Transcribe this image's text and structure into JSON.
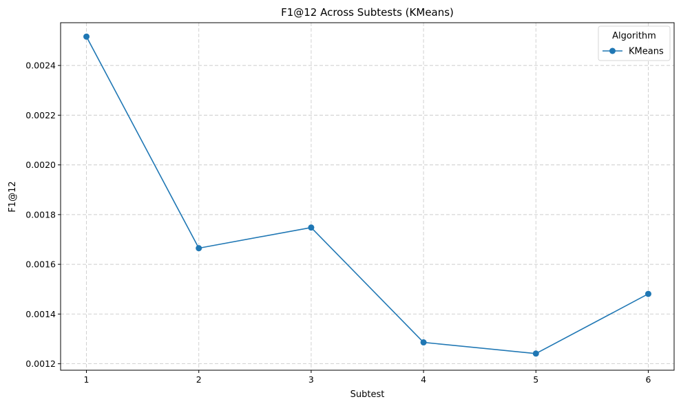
{
  "chart_data": {
    "type": "line",
    "title": "F1@12 Across Subtests (KMeans)",
    "xlabel": "Subtest",
    "ylabel": "F1@12",
    "x": [
      1,
      2,
      3,
      4,
      5,
      6
    ],
    "xlim": [
      0.77,
      6.23
    ],
    "ylim": [
      0.001174,
      0.002572
    ],
    "x_ticks": [
      "1",
      "2",
      "3",
      "4",
      "5",
      "6"
    ],
    "y_ticks": [
      "0.0012",
      "0.0014",
      "0.0016",
      "0.0018",
      "0.0020",
      "0.0022",
      "0.0024"
    ],
    "series": [
      {
        "name": "KMeans",
        "color": "#1f77b4",
        "marker": "circle",
        "values": [
          0.002516,
          0.001665,
          0.001748,
          0.001286,
          0.001241,
          0.001481
        ]
      }
    ],
    "legend": {
      "title": "Algorithm",
      "placement": "top-right"
    },
    "grid": true
  }
}
